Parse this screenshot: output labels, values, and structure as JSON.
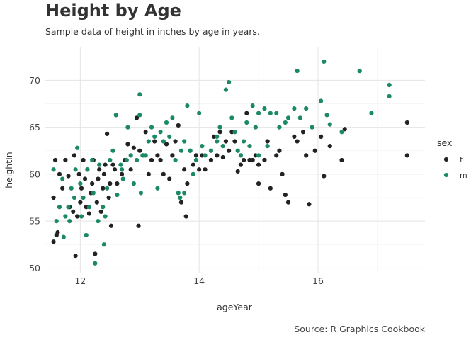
{
  "chart_data": {
    "type": "scatter",
    "title": "Height by Age",
    "subtitle": "Sample data of height in inches by age in years.",
    "caption": "Source: R Graphics Cookbook",
    "xlabel": "ageYear",
    "ylabel": "heightIn",
    "xlim": [
      11.4,
      17.8
    ],
    "ylim": [
      49.5,
      73.5
    ],
    "x_ticks": [
      12,
      14,
      16
    ],
    "y_ticks": [
      50,
      55,
      60,
      65,
      70
    ],
    "grid": true,
    "legend": {
      "title": "sex",
      "position": "right"
    },
    "series": [
      {
        "name": "f",
        "color": "#222222",
        "points": [
          [
            11.55,
            52.8
          ],
          [
            11.6,
            53.5
          ],
          [
            11.62,
            53.8
          ],
          [
            11.55,
            57.5
          ],
          [
            11.58,
            61.5
          ],
          [
            11.65,
            60.0
          ],
          [
            11.7,
            58.5
          ],
          [
            11.75,
            61.5
          ],
          [
            11.8,
            59.8
          ],
          [
            11.82,
            56.5
          ],
          [
            11.88,
            56.0
          ],
          [
            11.9,
            62.0
          ],
          [
            11.92,
            51.3
          ],
          [
            11.95,
            55.5
          ],
          [
            11.98,
            60.0
          ],
          [
            12.0,
            57.0
          ],
          [
            12.02,
            58.5
          ],
          [
            12.05,
            61.5
          ],
          [
            12.08,
            59.5
          ],
          [
            12.1,
            56.5
          ],
          [
            12.12,
            60.5
          ],
          [
            12.15,
            55.8
          ],
          [
            12.18,
            58.0
          ],
          [
            12.2,
            59.0
          ],
          [
            12.22,
            61.5
          ],
          [
            12.25,
            51.5
          ],
          [
            12.28,
            57.0
          ],
          [
            12.3,
            59.5
          ],
          [
            12.32,
            60.5
          ],
          [
            12.35,
            56.0
          ],
          [
            12.38,
            58.5
          ],
          [
            12.4,
            60.0
          ],
          [
            12.42,
            61.0
          ],
          [
            12.45,
            64.3
          ],
          [
            12.48,
            57.5
          ],
          [
            12.5,
            59.0
          ],
          [
            12.52,
            54.5
          ],
          [
            12.55,
            61.0
          ],
          [
            12.58,
            60.5
          ],
          [
            12.62,
            59.0
          ],
          [
            12.7,
            60.0
          ],
          [
            12.75,
            61.5
          ],
          [
            12.8,
            63.2
          ],
          [
            12.85,
            60.5
          ],
          [
            12.9,
            62.8
          ],
          [
            12.95,
            66.0
          ],
          [
            12.98,
            54.5
          ],
          [
            13.0,
            62.5
          ],
          [
            13.05,
            62.0
          ],
          [
            13.1,
            64.5
          ],
          [
            13.15,
            60.0
          ],
          [
            13.2,
            61.5
          ],
          [
            13.25,
            63.5
          ],
          [
            13.3,
            62.0
          ],
          [
            13.35,
            61.5
          ],
          [
            13.4,
            60.0
          ],
          [
            13.45,
            63.2
          ],
          [
            13.5,
            59.5
          ],
          [
            13.55,
            62.0
          ],
          [
            13.6,
            63.5
          ],
          [
            13.65,
            65.2
          ],
          [
            13.7,
            57.0
          ],
          [
            13.75,
            60.5
          ],
          [
            13.78,
            55.5
          ],
          [
            13.8,
            59.0
          ],
          [
            13.85,
            62.5
          ],
          [
            13.9,
            61.0
          ],
          [
            13.95,
            62.0
          ],
          [
            14.0,
            60.5
          ],
          [
            14.05,
            62.0
          ],
          [
            14.1,
            60.5
          ],
          [
            14.2,
            61.5
          ],
          [
            14.25,
            64.0
          ],
          [
            14.3,
            62.0
          ],
          [
            14.35,
            64.5
          ],
          [
            14.4,
            61.8
          ],
          [
            14.45,
            63.5
          ],
          [
            14.5,
            62.5
          ],
          [
            14.55,
            64.5
          ],
          [
            14.6,
            63.5
          ],
          [
            14.65,
            60.3
          ],
          [
            14.7,
            61.0
          ],
          [
            14.75,
            61.5
          ],
          [
            14.8,
            66.5
          ],
          [
            14.85,
            61.5
          ],
          [
            14.9,
            61.5
          ],
          [
            14.95,
            62.0
          ],
          [
            15.0,
            59.0
          ],
          [
            15.1,
            61.5
          ],
          [
            15.15,
            63.5
          ],
          [
            15.2,
            58.5
          ],
          [
            15.3,
            62.0
          ],
          [
            15.35,
            62.5
          ],
          [
            15.4,
            60.0
          ],
          [
            15.45,
            57.8
          ],
          [
            15.5,
            57.0
          ],
          [
            15.6,
            64.0
          ],
          [
            15.65,
            63.5
          ],
          [
            15.75,
            64.5
          ],
          [
            15.8,
            62.0
          ],
          [
            15.85,
            56.8
          ],
          [
            15.95,
            62.5
          ],
          [
            16.05,
            64.0
          ],
          [
            16.1,
            59.8
          ],
          [
            16.2,
            63.0
          ],
          [
            16.4,
            61.5
          ],
          [
            16.45,
            64.8
          ],
          [
            17.5,
            65.5
          ],
          [
            17.5,
            62.0
          ],
          [
            15.0,
            61.0
          ]
        ]
      },
      {
        "name": "m",
        "color": "#1b8a64",
        "points": [
          [
            11.55,
            60.5
          ],
          [
            11.6,
            55.0
          ],
          [
            11.65,
            56.5
          ],
          [
            11.7,
            59.5
          ],
          [
            11.72,
            53.3
          ],
          [
            11.75,
            55.5
          ],
          [
            11.8,
            56.5
          ],
          [
            11.82,
            55.0
          ],
          [
            11.85,
            58.5
          ],
          [
            11.9,
            57.5
          ],
          [
            11.92,
            60.5
          ],
          [
            11.95,
            62.8
          ],
          [
            12.0,
            59.0
          ],
          [
            12.02,
            55.5
          ],
          [
            12.05,
            57.5
          ],
          [
            12.1,
            53.5
          ],
          [
            12.12,
            60.5
          ],
          [
            12.15,
            56.5
          ],
          [
            12.2,
            61.5
          ],
          [
            12.22,
            58.0
          ],
          [
            12.25,
            50.5
          ],
          [
            12.3,
            55.0
          ],
          [
            12.32,
            61.0
          ],
          [
            12.38,
            56.5
          ],
          [
            12.4,
            52.5
          ],
          [
            12.42,
            55.5
          ],
          [
            12.45,
            58.5
          ],
          [
            12.5,
            61.5
          ],
          [
            12.55,
            62.5
          ],
          [
            12.6,
            66.3
          ],
          [
            12.62,
            57.8
          ],
          [
            12.68,
            61.0
          ],
          [
            12.72,
            59.5
          ],
          [
            12.78,
            61.5
          ],
          [
            12.8,
            65.0
          ],
          [
            12.85,
            62.0
          ],
          [
            12.9,
            59.0
          ],
          [
            12.95,
            61.5
          ],
          [
            13.0,
            68.5
          ],
          [
            13.0,
            66.3
          ],
          [
            13.02,
            58.0
          ],
          [
            13.05,
            62.0
          ],
          [
            13.1,
            62.0
          ],
          [
            13.15,
            63.5
          ],
          [
            13.2,
            65.0
          ],
          [
            13.25,
            64.0
          ],
          [
            13.3,
            58.5
          ],
          [
            13.35,
            64.5
          ],
          [
            13.4,
            63.5
          ],
          [
            13.45,
            65.5
          ],
          [
            13.5,
            64.0
          ],
          [
            13.55,
            66.0
          ],
          [
            13.6,
            61.5
          ],
          [
            13.65,
            58.0
          ],
          [
            13.68,
            57.5
          ],
          [
            13.7,
            62.5
          ],
          [
            13.75,
            63.5
          ],
          [
            13.8,
            67.3
          ],
          [
            13.85,
            62.5
          ],
          [
            13.9,
            60.0
          ],
          [
            13.95,
            61.5
          ],
          [
            14.0,
            66.5
          ],
          [
            14.05,
            63.0
          ],
          [
            14.1,
            62.0
          ],
          [
            14.2,
            62.5
          ],
          [
            14.3,
            63.5
          ],
          [
            14.35,
            65.0
          ],
          [
            14.4,
            63.0
          ],
          [
            14.45,
            69.0
          ],
          [
            14.5,
            69.8
          ],
          [
            14.55,
            66.0
          ],
          [
            14.6,
            64.5
          ],
          [
            14.65,
            62.5
          ],
          [
            14.7,
            62.0
          ],
          [
            14.75,
            63.5
          ],
          [
            14.8,
            65.5
          ],
          [
            14.85,
            63.0
          ],
          [
            14.9,
            67.3
          ],
          [
            14.95,
            65.0
          ],
          [
            15.0,
            62.0
          ],
          [
            15.1,
            67.0
          ],
          [
            15.15,
            63.0
          ],
          [
            15.2,
            66.5
          ],
          [
            15.3,
            66.5
          ],
          [
            15.35,
            65.0
          ],
          [
            15.45,
            65.5
          ],
          [
            15.5,
            66.0
          ],
          [
            15.6,
            67.0
          ],
          [
            15.65,
            71.0
          ],
          [
            15.7,
            66.0
          ],
          [
            15.8,
            67.0
          ],
          [
            15.9,
            65.0
          ],
          [
            16.05,
            67.8
          ],
          [
            16.1,
            72.0
          ],
          [
            16.15,
            66.3
          ],
          [
            16.2,
            65.3
          ],
          [
            16.4,
            64.5
          ],
          [
            16.7,
            71.0
          ],
          [
            16.9,
            66.5
          ],
          [
            17.2,
            69.5
          ],
          [
            17.2,
            68.3
          ],
          [
            13.75,
            58.0
          ],
          [
            15.0,
            66.5
          ],
          [
            14.3,
            64.0
          ],
          [
            12.7,
            60.5
          ]
        ]
      }
    ]
  }
}
